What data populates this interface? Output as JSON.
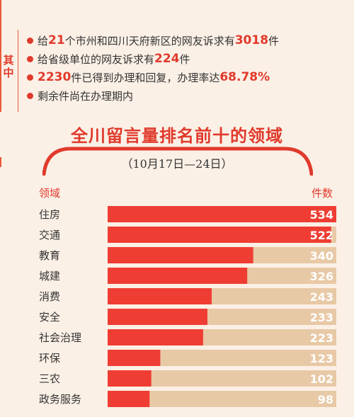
{
  "sidebar_label": "其中",
  "notes": [
    {
      "pre": "给",
      "num1": "21",
      "mid": "个市州和四川天府新区的网友诉求有",
      "num2": "3018",
      "post": "件"
    },
    {
      "pre": "给省级单位的网友诉求有",
      "num1": "224",
      "mid": "件",
      "num2": "",
      "post": ""
    },
    {
      "pre": "",
      "num1": "2230",
      "mid": "件已得到办理和回复，办理率达",
      "num2": "68.78%",
      "post": ""
    },
    {
      "pre": "剩余件尚在办理期内",
      "num1": "",
      "mid": "",
      "num2": "",
      "post": ""
    }
  ],
  "colors": {
    "accent": "#e03a2c",
    "bar": "#ef3d33",
    "track": "#e8c9a6",
    "background": "#fbf0e6"
  },
  "chart_data": {
    "type": "bar",
    "orientation": "horizontal",
    "title": "全川留言量排名前十的领域",
    "subtitle": "（10月17日—24日）",
    "xlabel": "件数",
    "ylabel": "领域",
    "xlim": [
      0,
      534
    ],
    "categories": [
      "住房",
      "交通",
      "教育",
      "城建",
      "消费",
      "安全",
      "社会治理",
      "环保",
      "三农",
      "政务服务"
    ],
    "values": [
      534,
      522,
      340,
      326,
      243,
      233,
      223,
      123,
      102,
      98
    ],
    "data_labels": [
      "534",
      "522",
      "340",
      "326",
      "243",
      "233",
      "223",
      "123",
      "102",
      "98"
    ]
  }
}
